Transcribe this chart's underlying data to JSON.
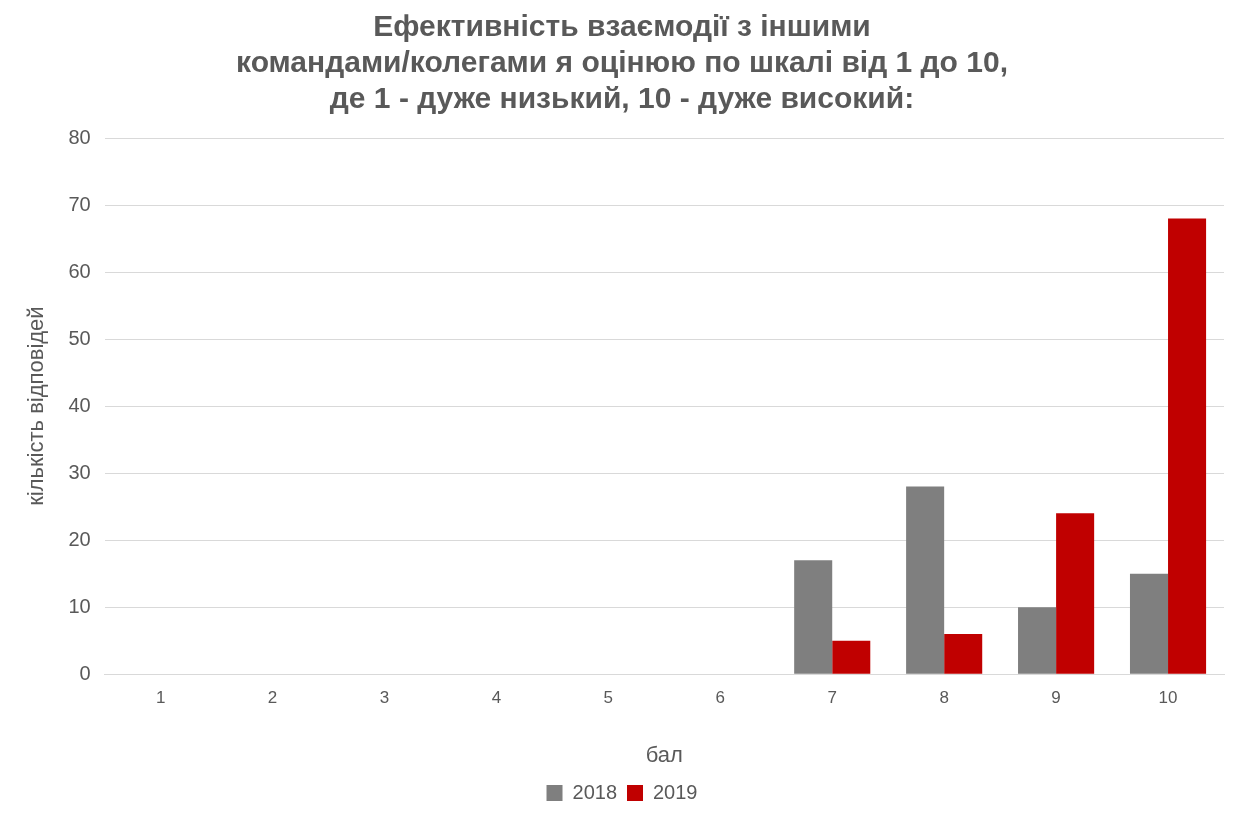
{
  "chart_data": {
    "type": "bar",
    "title": "Ефективність взаємодії з іншими\nкомандами/колегами я оцінюю по шкалі від 1 до 10,\nде 1 - дуже низький, 10 - дуже високий:",
    "xlabel": "бал",
    "ylabel": "кількість відповідей",
    "categories": [
      "1",
      "2",
      "3",
      "4",
      "5",
      "6",
      "7",
      "8",
      "9",
      "10"
    ],
    "series": [
      {
        "name": "2018",
        "color": "#7f7f7f",
        "values": [
          0,
          0,
          0,
          0,
          0,
          0,
          17,
          28,
          10,
          15
        ]
      },
      {
        "name": "2019",
        "color": "#c00000",
        "values": [
          0,
          0,
          0,
          0,
          0,
          0,
          5,
          6,
          24,
          68
        ]
      }
    ],
    "ylim": [
      0,
      80
    ],
    "yticks": [
      0,
      10,
      20,
      30,
      40,
      50,
      60,
      70,
      80
    ],
    "grid": "y",
    "legend": "bottom"
  }
}
